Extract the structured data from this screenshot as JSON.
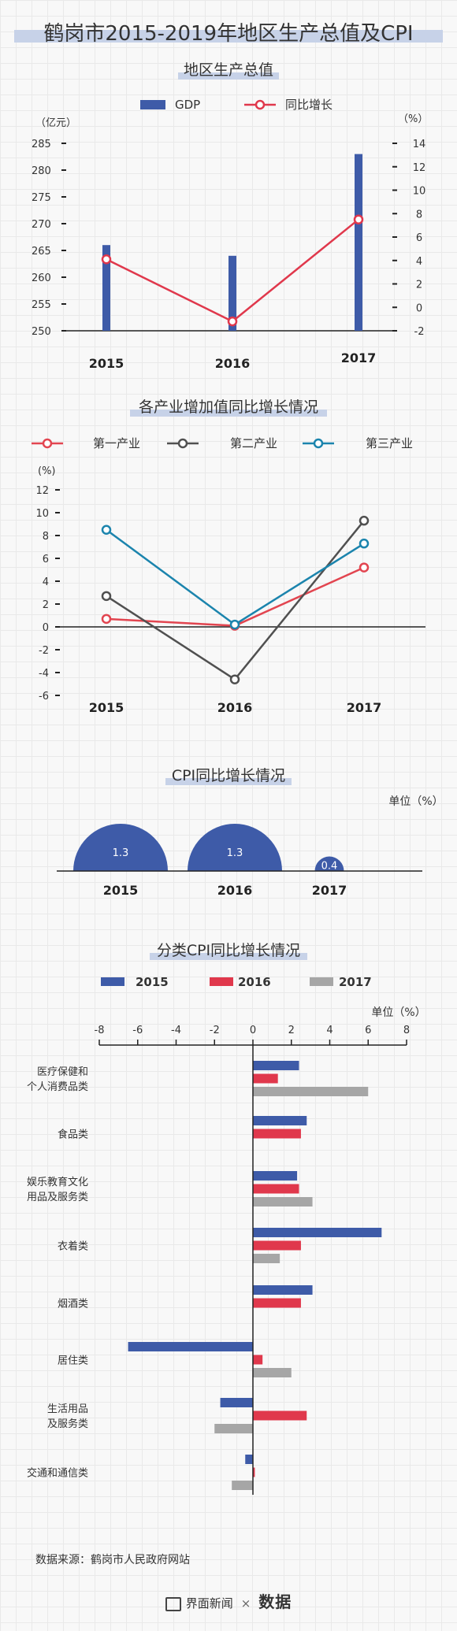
{
  "title": "鹤岗市2015-2019年地区生产总值及CPI",
  "colors": {
    "blue": "#3e5ba8",
    "red": "#e0384c",
    "gray": "#a6a6a6",
    "dark": "#505050",
    "teal": "#1b84ad",
    "red2": "#e24550"
  },
  "source": "数据来源：鹤岗市人民政府网站",
  "footer": {
    "brand1": "界面新闻",
    "sep": "×",
    "brand2": "数据"
  },
  "chart_data": [
    {
      "type": "bar+line",
      "title": "地区生产总值",
      "categories": [
        "2015",
        "2016",
        "2017"
      ],
      "ylabel": "（亿元）",
      "y2label": "（%）",
      "ylim": [
        250,
        285
      ],
      "yticks": [
        250,
        255,
        260,
        265,
        270,
        275,
        280,
        285
      ],
      "y2lim": [
        -2,
        14
      ],
      "y2ticks": [
        -2,
        0,
        2,
        4,
        6,
        8,
        10,
        12,
        14
      ],
      "series": [
        {
          "name": "GDP",
          "kind": "bar",
          "axis": "left",
          "values": [
            266,
            264,
            283
          ]
        },
        {
          "name": "同比增长",
          "kind": "line",
          "axis": "right",
          "values": [
            4.1,
            -1.2,
            7.5
          ]
        }
      ]
    },
    {
      "type": "line",
      "title": "各产业增加值同比增长情况",
      "categories": [
        "2015",
        "2016",
        "2017"
      ],
      "ylabel": "(%)",
      "ylim": [
        -6,
        12
      ],
      "yticks": [
        -6,
        -4,
        -2,
        0,
        2,
        4,
        6,
        8,
        10,
        12
      ],
      "series": [
        {
          "name": "第一产业",
          "values": [
            0.7,
            0.1,
            5.2
          ]
        },
        {
          "name": "第二产业",
          "values": [
            2.7,
            -4.6,
            9.3
          ]
        },
        {
          "name": "第三产业",
          "values": [
            8.5,
            0.2,
            7.3
          ]
        }
      ]
    },
    {
      "type": "bar",
      "title": "CPI同比增长情况",
      "unit": "单位（%）",
      "categories": [
        "2015",
        "2016",
        "2017"
      ],
      "values": [
        1.3,
        1.3,
        0.4
      ]
    },
    {
      "type": "bar",
      "orientation": "horizontal",
      "title": "分类CPI同比增长情况",
      "unit": "单位（%）",
      "xlim": [
        -8,
        8
      ],
      "xticks": [
        -8,
        -6,
        -4,
        -2,
        0,
        2,
        4,
        6,
        8
      ],
      "categories": [
        "医疗保健和\n个人消费品类",
        "食品类",
        "娱乐教育文化\n用品及服务类",
        "衣着类",
        "烟酒类",
        "居住类",
        "生活用品\n及服务类",
        "交通和通信类"
      ],
      "series": [
        {
          "name": "2015",
          "values": [
            2.4,
            2.8,
            2.3,
            6.7,
            3.1,
            -6.5,
            -1.7,
            -0.4
          ]
        },
        {
          "name": "2016",
          "values": [
            1.3,
            2.5,
            2.4,
            2.5,
            2.5,
            0.5,
            2.8,
            0.1
          ]
        },
        {
          "name": "2017",
          "values": [
            6.0,
            0,
            3.1,
            1.4,
            0,
            2.0,
            -2.0,
            -1.1
          ]
        }
      ]
    }
  ]
}
